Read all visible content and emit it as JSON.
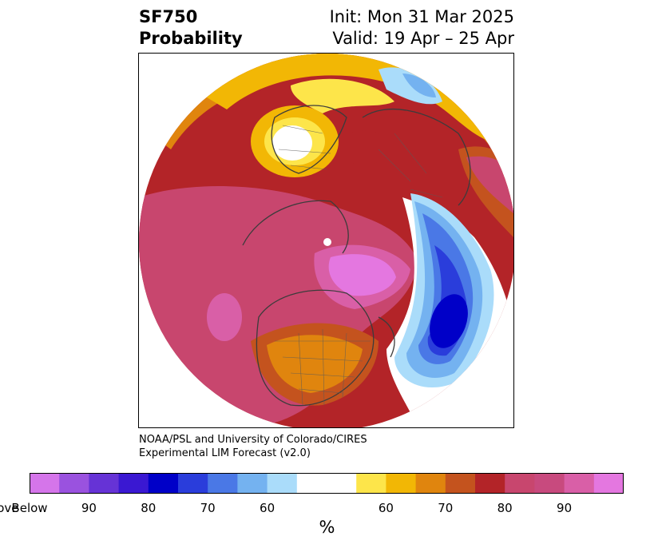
{
  "header": {
    "title_line1": "SF750",
    "title_line2": "Probability",
    "init": "Init: Mon 31 Mar 2025",
    "valid": "Valid: 19 Apr – 25 Apr"
  },
  "map": {
    "projection": "north-polar stereographic",
    "pattern": "large above-normal SF750 probability (red/pink/magenta) over the Arctic, North America and Pacific; below-normal (blue) over the North Atlantic and western Europe",
    "colors": {
      "above_100": "#e477e0",
      "above_90": "#d95fa7",
      "above_80": "#c8466e",
      "above_70": "#b32428",
      "above_65": "#c4531e",
      "above_60": "#e0850e",
      "above_55": "#f2b705",
      "above_50": "#fde54a",
      "neutral": "#ffffff",
      "below_55": "#aadcfa",
      "below_60": "#74b2f0",
      "below_65": "#4a78e6",
      "below_70": "#2a3ddb",
      "below_80": "#0000c8",
      "below_90": "#3a18d2"
    }
  },
  "credit": {
    "line1": "NOAA/PSL and University of Colorado/CIRES",
    "line2": "Experimental LIM Forecast (v2.0)"
  },
  "colorbar": {
    "colors": [
      "#d575ea",
      "#9a52df",
      "#6633d6",
      "#3a18d2",
      "#0000c8",
      "#2a3ddb",
      "#4a78e6",
      "#74b2f0",
      "#aadcfa",
      "#ffffff",
      "#fde54a",
      "#f2b705",
      "#e0850e",
      "#c4531e",
      "#b32428",
      "#c8466e",
      "#c84a7e",
      "#d95fa7",
      "#e477e0"
    ],
    "widths": [
      1,
      1,
      1,
      1,
      1,
      1,
      1,
      1,
      1,
      2,
      1,
      1,
      1,
      1,
      1,
      1,
      1,
      1,
      1
    ],
    "tick_labels": [
      "Below",
      "90",
      "80",
      "70",
      "60",
      "60",
      "70",
      "80",
      "90",
      "Above"
    ],
    "units": "%"
  }
}
